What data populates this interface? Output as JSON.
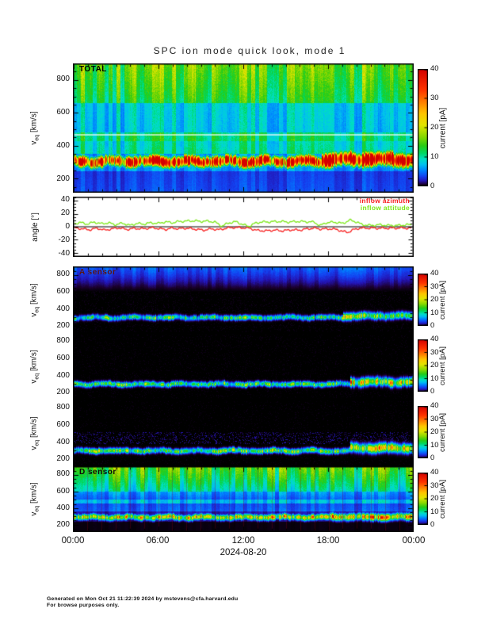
{
  "title": "SPC ion mode quick look, mode 1",
  "labels": {
    "v": "v",
    "v_sub": "eq",
    "v_unit": " [km/s]",
    "angle": "angle [°]"
  },
  "legend": {
    "azimuth": "inflow azimuth",
    "attitude": "inflow attitude",
    "azimuth_color": "#f82020",
    "attitude_color": "#7ce818"
  },
  "footer": {
    "line1": "Generated on Mon Oct 21 11:22:39 2024 by mstevens@cfa.harvard.edu",
    "line2": "For browse purposes only."
  },
  "chart_data": {
    "type": "heatmap",
    "title": "SPC ion mode quick look, mode 1",
    "x_axis": {
      "range_hours": [
        0,
        24
      ],
      "tick_labels": [
        "00:00",
        "06:00",
        "12:00",
        "18:00",
        "00:00"
      ],
      "major_tick_hours": 6,
      "minor_tick_hours": 1,
      "date_label": "2024-08-20"
    },
    "velocity_axis": {
      "range": [
        120,
        895
      ],
      "ticks": [
        200,
        400,
        600,
        800
      ],
      "minor_step": 50
    },
    "colorbar": {
      "label": "current [pA]",
      "range_pA": [
        0,
        40
      ],
      "ticks": [
        0,
        10,
        20,
        30,
        40
      ]
    },
    "colormap_stops": [
      [
        0,
        "#000000"
      ],
      [
        0.8,
        "#1c0030"
      ],
      [
        2,
        "#2414b4"
      ],
      [
        3.5,
        "#1440f0"
      ],
      [
        5.5,
        "#0080ff"
      ],
      [
        7.5,
        "#00c0f0"
      ],
      [
        9.5,
        "#00e0c0"
      ],
      [
        11.5,
        "#00d860"
      ],
      [
        14,
        "#28cc14"
      ],
      [
        17,
        "#86d800"
      ],
      [
        21,
        "#e2e600"
      ],
      [
        25,
        "#ffc400"
      ],
      [
        29,
        "#ff7c00"
      ],
      [
        33,
        "#ff3400"
      ],
      [
        40,
        "#d40000"
      ]
    ],
    "panels": [
      {
        "id": "total",
        "kind": "spectrogram",
        "label": "TOTAL",
        "white_line_v": 470,
        "bands": [
          {
            "v": [
              120,
              250
            ],
            "p": [
              3.8,
              3.2
            ]
          },
          {
            "v": [
              250,
              355
            ],
            "p": [
              6,
              6
            ]
          },
          {
            "v": [
              355,
              430
            ],
            "p": [
              10,
              9.2
            ]
          },
          {
            "v": [
              430,
              480
            ],
            "p": [
              11.5,
              11
            ]
          },
          {
            "v": [
              480,
              655
            ],
            "p": [
              7.7,
              8.2
            ]
          },
          {
            "v": [
              655,
              895
            ],
            "p": [
              12.5,
              16
            ]
          }
        ],
        "beam": {
          "c": 308,
          "w": 30,
          "pk": 26,
          "late": [
            17.5,
            320,
            37,
            33
          ]
        }
      },
      {
        "id": "angle",
        "kind": "line",
        "y_range": [
          -45,
          45
        ],
        "y_ticks": [
          -40,
          -20,
          0,
          20,
          40
        ],
        "series": [
          {
            "name": "inflow azimuth",
            "color": "#f82020",
            "points": [
              [
                0,
                -1.5
              ],
              [
                0.7,
                -3
              ],
              [
                1.2,
                -4.5
              ],
              [
                1.7,
                -2
              ],
              [
                2.2,
                -5
              ],
              [
                2.8,
                -3
              ],
              [
                3.2,
                -1.5
              ],
              [
                3.8,
                -4
              ],
              [
                4.3,
                -2.5
              ],
              [
                5,
                -3
              ],
              [
                5.5,
                -1.5
              ],
              [
                6,
                -2.5
              ],
              [
                6.5,
                -4
              ],
              [
                7,
                -2
              ],
              [
                7.5,
                -3
              ],
              [
                8,
                -2
              ],
              [
                8.6,
                -3.5
              ],
              [
                9.2,
                -5
              ],
              [
                9.8,
                -3
              ],
              [
                10.3,
                -4.5
              ],
              [
                10.8,
                -2
              ],
              [
                11.3,
                -1
              ],
              [
                12,
                -1.5
              ],
              [
                12.5,
                -2.5
              ],
              [
                13,
                -5.5
              ],
              [
                13.6,
                -6
              ],
              [
                14.2,
                -5
              ],
              [
                14.8,
                -6
              ],
              [
                15.4,
                -4.5
              ],
              [
                16,
                -5
              ],
              [
                16.5,
                -3
              ],
              [
                17,
                -2
              ],
              [
                17.5,
                -3.5
              ],
              [
                18,
                -3
              ],
              [
                18.6,
                -4
              ],
              [
                19,
                -7
              ],
              [
                19.4,
                -8
              ],
              [
                19.8,
                -4
              ],
              [
                20.2,
                -2
              ],
              [
                21,
                -2
              ],
              [
                22,
                -2.2
              ],
              [
                23,
                -1.8
              ],
              [
                24,
                -2
              ]
            ]
          },
          {
            "name": "inflow attitude",
            "color": "#7ce818",
            "points": [
              [
                0,
                4
              ],
              [
                0.5,
                6.5
              ],
              [
                1,
                4
              ],
              [
                1.5,
                7
              ],
              [
                2,
                4.5
              ],
              [
                2.5,
                6
              ],
              [
                3,
                3
              ],
              [
                3.5,
                5.5
              ],
              [
                4,
                2
              ],
              [
                4.5,
                5
              ],
              [
                5,
                4
              ],
              [
                5.5,
                6
              ],
              [
                6,
                5
              ],
              [
                6.5,
                7.5
              ],
              [
                7,
                6
              ],
              [
                7.5,
                8
              ],
              [
                8,
                8.5
              ],
              [
                8.5,
                9
              ],
              [
                9,
                8
              ],
              [
                9.5,
                8.5
              ],
              [
                10,
                7
              ],
              [
                10.5,
                1
              ],
              [
                11,
                6
              ],
              [
                11.5,
                7.5
              ],
              [
                12,
                3
              ],
              [
                12.4,
                0.5
              ],
              [
                12.8,
                5
              ],
              [
                13.2,
                7
              ],
              [
                14,
                7.5
              ],
              [
                14.6,
                8
              ],
              [
                15.2,
                7
              ],
              [
                15.8,
                8
              ],
              [
                16.4,
                7.5
              ],
              [
                17,
                7
              ],
              [
                17.4,
                1.5
              ],
              [
                17.8,
                6
              ],
              [
                18.4,
                7
              ],
              [
                19,
                5
              ],
              [
                19.5,
                10
              ],
              [
                20,
                7
              ],
              [
                20.4,
                3
              ],
              [
                21,
                2
              ],
              [
                21.6,
                3
              ],
              [
                22.2,
                2
              ],
              [
                23,
                2
              ],
              [
                23.5,
                3
              ],
              [
                24,
                3
              ]
            ]
          }
        ]
      },
      {
        "id": "a",
        "kind": "spectrogram",
        "label": "A sensor",
        "bands": [
          {
            "v": [
              600,
              895
            ],
            "p": [
              0,
              4.6
            ]
          }
        ],
        "beam": {
          "c": 300,
          "w": 26,
          "pk": 7,
          "late": [
            19,
            318,
            36,
            9
          ]
        },
        "speckle": [
          {
            "v": [
              120,
              895
            ],
            "p": 0.35,
            "d": 0.15
          }
        ]
      },
      {
        "id": "b",
        "kind": "spectrogram",
        "label": "",
        "bands": [],
        "beam": {
          "c": 300,
          "w": 26,
          "pk": 8,
          "late": [
            19.5,
            325,
            42,
            12
          ]
        },
        "speckle": [
          {
            "v": [
              120,
              895
            ],
            "p": 0.3,
            "d": 0.12
          }
        ]
      },
      {
        "id": "c",
        "kind": "spectrogram",
        "label": "",
        "bands": [],
        "beam": {
          "c": 300,
          "w": 27,
          "pk": 8.5,
          "late": [
            19.5,
            330,
            46,
            12
          ]
        },
        "speckle": [
          {
            "v": [
              380,
              520
            ],
            "p": 1.4,
            "d": 0.22
          },
          {
            "v": [
              120,
              895
            ],
            "p": 0.3,
            "d": 0.1
          }
        ]
      },
      {
        "id": "d",
        "kind": "spectrogram",
        "label": "D sensor",
        "red_grid": true,
        "bands": [
          {
            "v": [
              120,
              245
            ],
            "p": [
              0.25,
              0.25
            ]
          },
          {
            "v": [
              245,
              275
            ],
            "p": [
              1.2,
              1.6
            ]
          },
          {
            "v": [
              275,
              360
            ],
            "p": [
              2,
              2
            ]
          },
          {
            "v": [
              360,
              460
            ],
            "p": [
              4.4,
              3.6
            ]
          },
          {
            "v": [
              460,
              505
            ],
            "p": [
              7.2,
              7.2
            ]
          },
          {
            "v": [
              505,
              600
            ],
            "p": [
              4.2,
              6.2
            ]
          },
          {
            "v": [
              600,
              895
            ],
            "p": [
              9,
              15
            ]
          }
        ],
        "beam": {
          "c": 295,
          "w": 30,
          "pk": 12,
          "late": [
            18,
            300,
            36,
            13.5
          ]
        }
      }
    ]
  }
}
